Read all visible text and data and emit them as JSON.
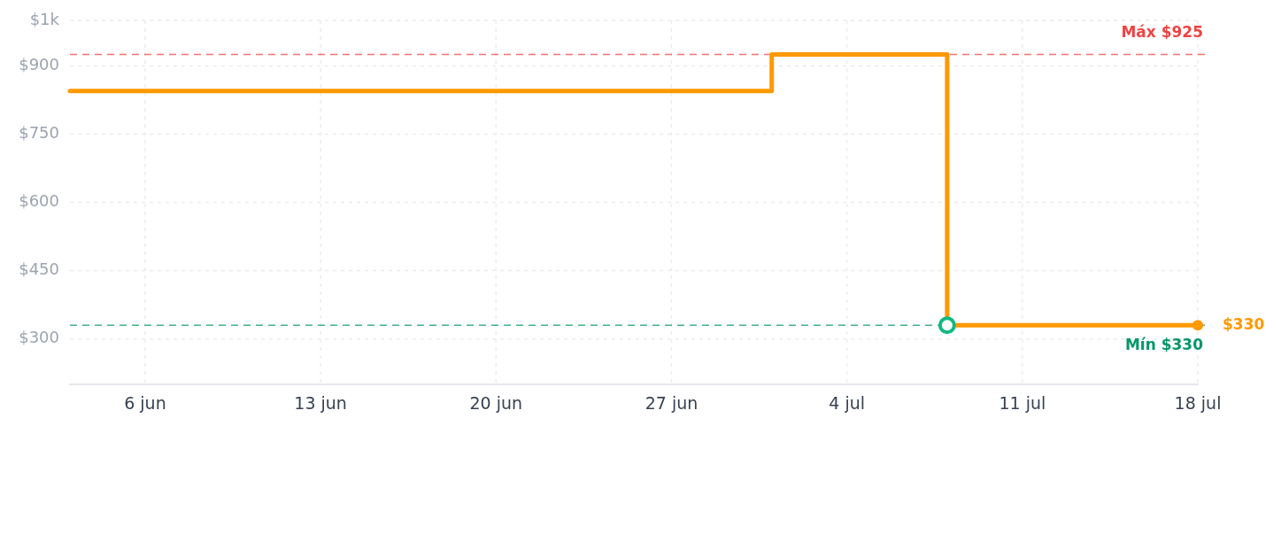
{
  "chart_data": {
    "type": "step",
    "x": [
      "--06-03",
      "--07-01",
      "--07-08",
      "--07-18"
    ],
    "series": [
      {
        "color": "#ff9900",
        "values": [
          845,
          925,
          330,
          330
        ]
      },
      {
        "type": "scatter",
        "color": "#10b981",
        "x": [
          "--07-08"
        ],
        "values": [
          330
        ],
        "marker": "circle"
      },
      {
        "type": "scatter",
        "color": "#ff9900",
        "x": [
          "--07-18"
        ],
        "values": [
          330
        ],
        "marker": "circle"
      }
    ],
    "xlim": [
      "--06-03",
      "--07-18"
    ],
    "xticks": [
      {
        "value": "--06-06",
        "label": "6 jun"
      },
      {
        "value": "--06-13",
        "label": "13 jun"
      },
      {
        "value": "--06-20",
        "label": "20 jun"
      },
      {
        "value": "--06-27",
        "label": "27 jun"
      },
      {
        "value": "--07-04",
        "label": "4 jul"
      },
      {
        "value": "--07-11",
        "label": "11 jul"
      },
      {
        "value": "--07-18",
        "label": "18 jul"
      }
    ],
    "ylim": [
      200,
      1000
    ],
    "yticks": [
      {
        "value": 300,
        "label": "$300"
      },
      {
        "value": 450,
        "label": "$450"
      },
      {
        "value": 600,
        "label": "$600"
      },
      {
        "value": 750,
        "label": "$750"
      },
      {
        "value": 900,
        "label": "$900"
      },
      {
        "value": 1000,
        "label": "$1k"
      }
    ],
    "grid": true,
    "ref_lines": [
      {
        "axis": "y",
        "value": 925,
        "label": "Máx $925",
        "color": "#ef4444",
        "line_style": "dashed"
      },
      {
        "axis": "y",
        "value": 330,
        "label": "Mín $330",
        "color": "#059669",
        "line_style": "dashed"
      }
    ],
    "annotations": [
      {
        "text": "$330",
        "x": "--07-18",
        "y": 330
      }
    ]
  }
}
